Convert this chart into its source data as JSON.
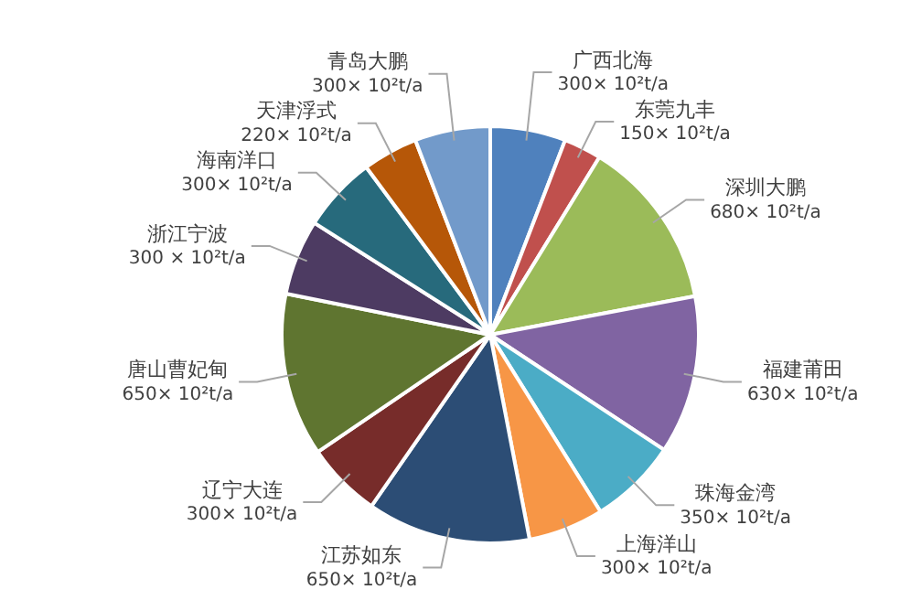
{
  "chart_data": {
    "type": "pie",
    "categories": [
      "广西北海",
      "东莞九丰",
      "深圳大鹏",
      "福建莆田",
      "珠海金湾",
      "上海洋山",
      "江苏如东",
      "辽宁大连",
      "唐山曹妃甸",
      "浙江宁波",
      "海南洋口",
      "天津浮式",
      "青岛大鹏"
    ],
    "values": [
      300,
      150,
      680,
      630,
      350,
      300,
      650,
      300,
      650,
      300,
      300,
      220,
      300
    ],
    "colors": [
      "#4f81bd",
      "#c0504d",
      "#9bbb59",
      "#8064a2",
      "#4bacc6",
      "#f79646",
      "#2c4d75",
      "#772c2a",
      "#5f7530",
      "#4d3b62",
      "#276a7c",
      "#b65708",
      "#729aca"
    ],
    "value_labels": [
      "300× 10²t/a",
      "150× 10²t/a",
      "680× 10²t/a",
      "630× 10²t/a",
      "350× 10²t/a",
      "300× 10²t/a",
      "650× 10²t/a",
      "300× 10²t/a",
      "650× 10²t/a",
      "300 × 10²t/a",
      "300× 10²t/a",
      "220× 10²t/a",
      "300× 10²t/a"
    ],
    "legend": false
  }
}
